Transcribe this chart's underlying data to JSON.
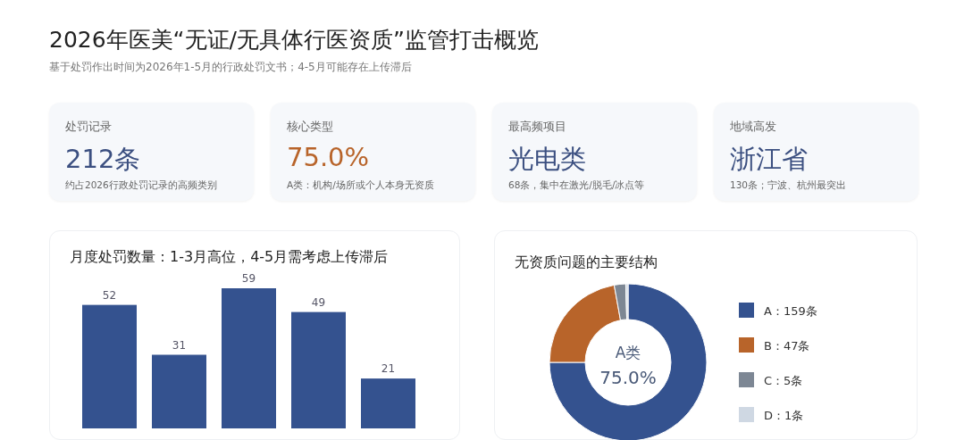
{
  "chart_data": [
    {
      "type": "other",
      "title": "2026年医美“无证/无具体行医资质”监管打击概览",
      "subtitle": "基于处罚作出时间为2026年1-5月的行政处罚文书；4-5月可能存在上传滞后"
    },
    {
      "type": "other",
      "title": "处罚记录",
      "annotations": [
        "212条",
        "约占2026行政处罚记录的高频类别"
      ],
      "color": "#3b4f80"
    },
    {
      "type": "other",
      "title": "核心类型",
      "annotations": [
        "75.0%",
        "A类：机构/场所或个人本身无资质"
      ],
      "color": "#b8642a"
    },
    {
      "type": "other",
      "title": "最高频项目",
      "annotations": [
        "光电类",
        "68条，集中在激光/脱毛/冰点等"
      ],
      "color": "#3b4f80"
    },
    {
      "type": "other",
      "title": "地域高发",
      "annotations": [
        "浙江省",
        "130条；宁波、杭州最突出"
      ],
      "color": "#3b4f80"
    },
    {
      "type": "bar",
      "title": "月度处罚数量：1-3月高位，4-5月需考虑上传滞后",
      "categories": [
        null,
        null,
        null,
        null,
        null
      ],
      "values": [
        52,
        31,
        59,
        49,
        21
      ],
      "color": "#34528f",
      "data_labels": true
    },
    {
      "type": "donut",
      "title": "无资质问题的主要结构",
      "categories": [
        "A：159条",
        "B：47条",
        "C：5条",
        "D：1条"
      ],
      "values": [
        159,
        47,
        5,
        1
      ],
      "colors": [
        "#34528f",
        "#b8642a",
        "#7d8794",
        "#cfd8e3"
      ],
      "annotations": [
        "A类",
        "75.0%"
      ],
      "legend": "right"
    }
  ]
}
